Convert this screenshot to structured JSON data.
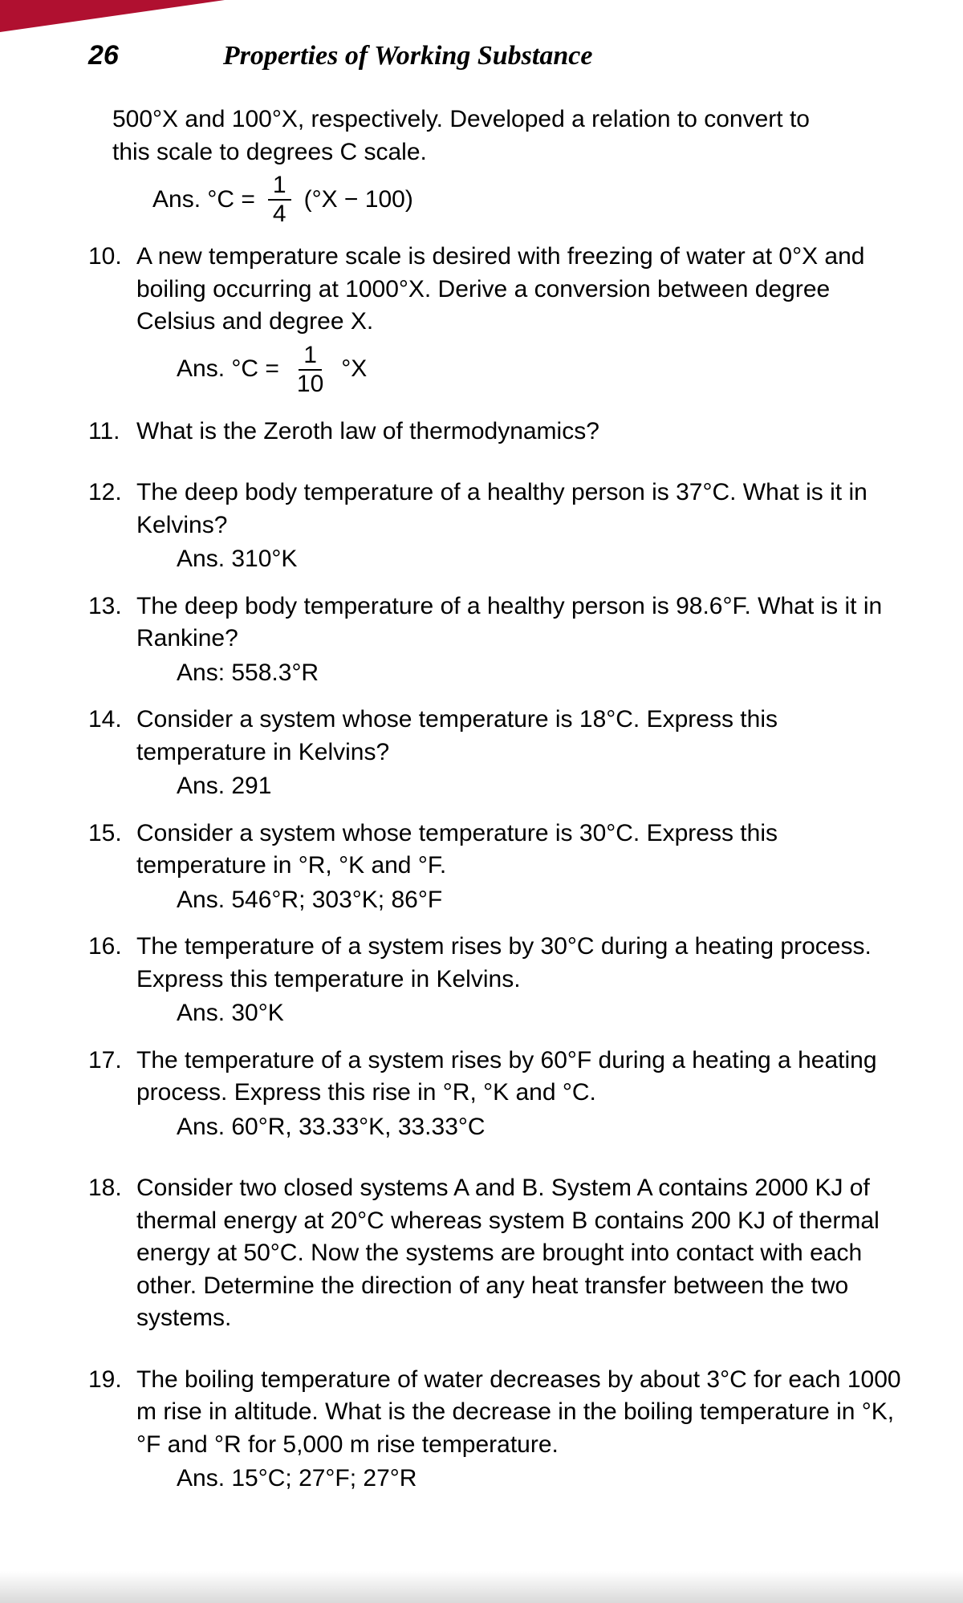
{
  "page_number": "26",
  "title": "Properties of Working Substance",
  "intro": {
    "line1": "500°X and 100°X, respectively.  Developed a relation to convert to",
    "line2": "this scale to degrees C scale.",
    "answer_prefix": "Ans.  °C  =",
    "frac_num": "1",
    "frac_den": "4",
    "answer_suffix": "(°X − 100)"
  },
  "q10": {
    "num": "10.",
    "text": "A new temperature scale is desired with freezing of water at 0°X and boiling occurring at 1000°X.  Derive a conversion between degree Celsius and degree X.",
    "answer_prefix": "Ans.  °C  =",
    "frac_num": "1",
    "frac_den": "10",
    "answer_suffix": "°X"
  },
  "q11": {
    "num": "11.",
    "text": "What is the Zeroth law of thermodynamics?"
  },
  "q12": {
    "num": "12.",
    "text": "The deep body temperature of a healthy person is 37°C.  What is it in Kelvins?",
    "answer": "Ans.  310°K"
  },
  "q13": {
    "num": "13.",
    "text": "The deep body temperature of a healthy person is 98.6°F.  What is it in Rankine?",
    "answer": "Ans:  558.3°R"
  },
  "q14": {
    "num": "14.",
    "text": "Consider a system whose temperature is 18°C.  Express this temperature in Kelvins?",
    "answer": "Ans.  291"
  },
  "q15": {
    "num": "15.",
    "text": "Consider a system whose temperature is 30°C.  Express this temperature in °R, °K and °F.",
    "answer": "Ans.  546°R;  303°K;  86°F"
  },
  "q16": {
    "num": "16.",
    "text": "The temperature of a system rises by 30°C during a heating process.  Express this temperature in Kelvins.",
    "answer": "Ans.  30°K"
  },
  "q17": {
    "num": "17.",
    "text": "The temperature of a system rises by 60°F during a heating a heating process.  Express this rise in °R, °K and °C.",
    "answer": "Ans.  60°R,  33.33°K, 33.33°C"
  },
  "q18": {
    "num": "18.",
    "text": "Consider two closed systems A and B.  System A contains 2000 KJ of thermal energy at 20°C whereas system B contains 200 KJ of thermal energy at 50°C.  Now the systems are brought into contact with each other.  Determine the direction of any heat transfer between the two systems."
  },
  "q19": {
    "num": "19.",
    "text": "The boiling temperature of water decreases by about 3°C for each 1000 m rise in altitude.  What is the decrease in the boiling temperature in °K, °F and °R for 5,000 m rise temperature.",
    "answer": "Ans.  15°C;  27°F;  27°R"
  }
}
